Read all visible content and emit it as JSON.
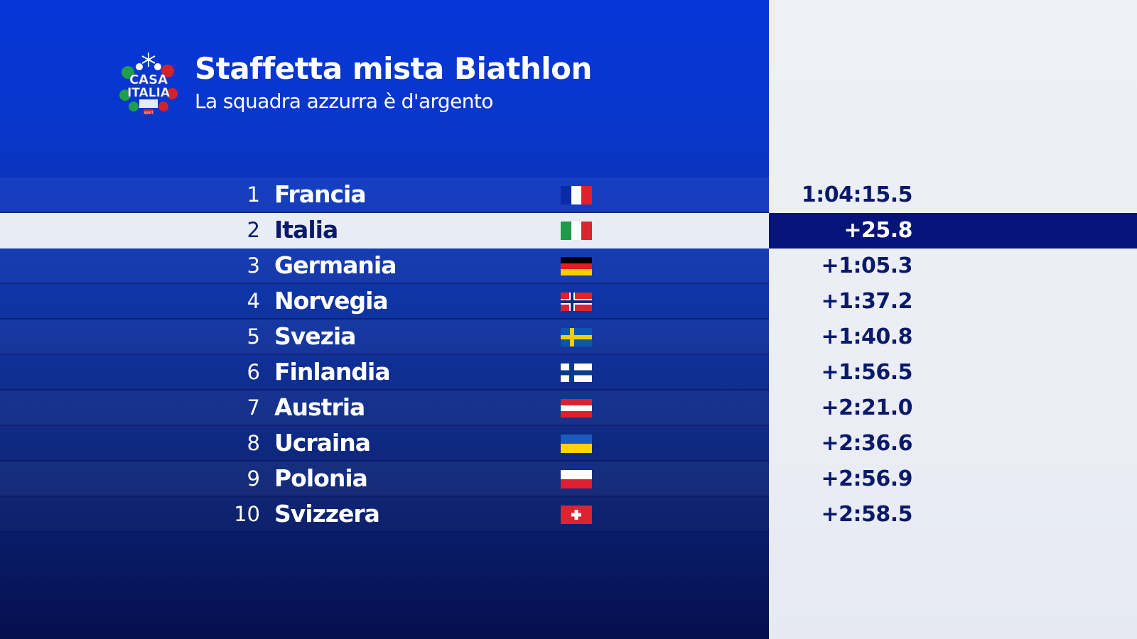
{
  "header": {
    "logo_text_line1": "CASA",
    "logo_text_line2": "ITALIA",
    "logo_badge": "sport",
    "title": "Staffetta mista Biathlon",
    "subtitle": "La squadra azzurra è d'argento"
  },
  "colors": {
    "panel_blue": "#0536d9",
    "panel_dark": "#050f4e",
    "highlight_row_bg": "#e8ecf5",
    "highlight_time_bg": "#06147a",
    "time_text": "#0a1a6a"
  },
  "standings": [
    {
      "position": "1",
      "team": "Francia",
      "flag_icon": "france-flag-icon",
      "time": "1:04:15.5",
      "highlight": false
    },
    {
      "position": "2",
      "team": "Italia",
      "flag_icon": "italy-flag-icon",
      "time": "+25.8",
      "highlight": true
    },
    {
      "position": "3",
      "team": "Germania",
      "flag_icon": "germany-flag-icon",
      "time": "+1:05.3",
      "highlight": false
    },
    {
      "position": "4",
      "team": "Norvegia",
      "flag_icon": "norway-flag-icon",
      "time": "+1:37.2",
      "highlight": false
    },
    {
      "position": "5",
      "team": "Svezia",
      "flag_icon": "sweden-flag-icon",
      "time": "+1:40.8",
      "highlight": false
    },
    {
      "position": "6",
      "team": "Finlandia",
      "flag_icon": "finland-flag-icon",
      "time": "+1:56.5",
      "highlight": false
    },
    {
      "position": "7",
      "team": "Austria",
      "flag_icon": "austria-flag-icon",
      "time": "+2:21.0",
      "highlight": false
    },
    {
      "position": "8",
      "team": "Ucraina",
      "flag_icon": "ukraine-flag-icon",
      "time": "+2:36.6",
      "highlight": false
    },
    {
      "position": "9",
      "team": "Polonia",
      "flag_icon": "poland-flag-icon",
      "time": "+2:56.9",
      "highlight": false
    },
    {
      "position": "10",
      "team": "Svizzera",
      "flag_icon": "switzerland-flag-icon",
      "time": "+2:58.5",
      "highlight": false
    }
  ]
}
